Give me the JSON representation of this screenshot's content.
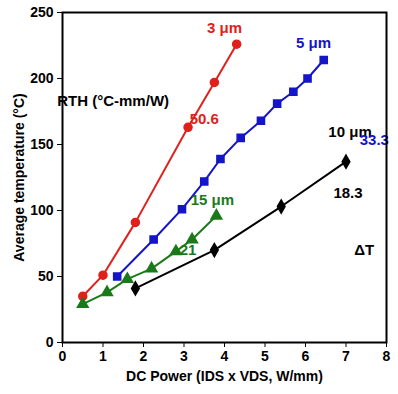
{
  "chart_data": {
    "type": "line",
    "xlabel": "DC Power (IDS x VDS, W/mm)",
    "ylabel": "Average temperature (°C)",
    "xlim": [
      0,
      8
    ],
    "xticks": [
      0,
      1,
      2,
      3,
      4,
      5,
      6,
      7,
      8
    ],
    "ylim": [
      0,
      250
    ],
    "yticks": [
      0,
      50,
      100,
      150,
      200,
      250
    ],
    "grid": false,
    "series": [
      {
        "name": "3 μm",
        "color": "#e0201b",
        "marker": "circle",
        "label_pos": [
          4.0,
          238
        ],
        "x": [
          0.5,
          1.0,
          1.8,
          3.1,
          3.75,
          4.3
        ],
        "values": [
          35,
          51,
          91,
          163,
          197,
          226
        ]
      },
      {
        "name": "5 μm",
        "color": "#1414c8",
        "marker": "square",
        "label_pos": [
          6.2,
          227
        ],
        "x": [
          1.35,
          2.25,
          2.95,
          3.5,
          3.9,
          4.4,
          4.9,
          5.3,
          5.7,
          6.05,
          6.45
        ],
        "values": [
          50,
          78,
          101,
          122,
          139,
          155,
          168,
          181,
          190,
          200,
          214
        ]
      },
      {
        "name": "10 μm",
        "color": "#000000",
        "marker": "diamond",
        "label_pos": [
          7.1,
          159
        ],
        "x": [
          1.8,
          3.75,
          5.4,
          7.0
        ],
        "values": [
          41,
          70,
          103,
          137
        ]
      },
      {
        "name": "15 μm",
        "color": "#1a7a1a",
        "marker": "triangle",
        "label_pos": [
          3.7,
          108
        ],
        "x": [
          0.5,
          1.1,
          1.6,
          2.2,
          2.8,
          3.2,
          3.8
        ],
        "values": [
          29,
          38,
          48,
          56,
          69,
          78,
          96
        ]
      }
    ],
    "annotations": [
      {
        "text": "RTH (°C-mm/W)",
        "x": 1.25,
        "y": 183,
        "color": "#000000"
      },
      {
        "text": "50.6",
        "x": 3.5,
        "y": 169,
        "color": "#e0201b"
      },
      {
        "text": "33.3",
        "x": 7.7,
        "y": 153,
        "color": "#1414c8"
      },
      {
        "text": "18.3",
        "x": 7.05,
        "y": 113,
        "color": "#000000"
      },
      {
        "text": "21",
        "x": 3.1,
        "y": 70,
        "color": "#1a7a1a"
      },
      {
        "text": "ΔT",
        "x": 7.45,
        "y": 70,
        "color": "#000000"
      }
    ]
  }
}
